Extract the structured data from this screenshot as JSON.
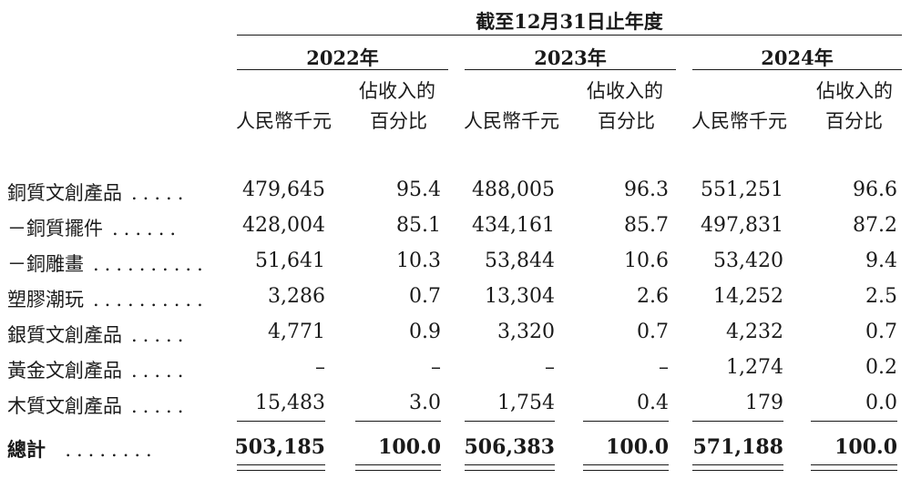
{
  "header": {
    "period_title": "截至12月31日止年度",
    "years": [
      "2022年",
      "2023年",
      "2024年"
    ],
    "col_amount": "人民幣千元",
    "col_pct_line1": "佔收入的",
    "col_pct_line2": "百分比"
  },
  "rows": [
    {
      "label": "銅質文創產品",
      "dots": ".....",
      "v2022": "479,645",
      "p2022": "95.4",
      "v2023": "488,005",
      "p2023": "96.3",
      "v2024": "551,251",
      "p2024": "96.6"
    },
    {
      "label": "－銅質擺件",
      "dots": "......",
      "v2022": "428,004",
      "p2022": "85.1",
      "v2023": "434,161",
      "p2023": "85.7",
      "v2024": "497,831",
      "p2024": "87.2"
    },
    {
      "label": "－銅雕畫",
      "dots": "..........",
      "v2022": "51,641",
      "p2022": "10.3",
      "v2023": "53,844",
      "p2023": "10.6",
      "v2024": "53,420",
      "p2024": "9.4"
    },
    {
      "label": "塑膠潮玩",
      "dots": "..........",
      "v2022": "3,286",
      "p2022": "0.7",
      "v2023": "13,304",
      "p2023": "2.6",
      "v2024": "14,252",
      "p2024": "2.5"
    },
    {
      "label": "銀質文創產品",
      "dots": ".....",
      "v2022": "4,771",
      "p2022": "0.9",
      "v2023": "3,320",
      "p2023": "0.7",
      "v2024": "4,232",
      "p2024": "0.7"
    },
    {
      "label": "黃金文創產品",
      "dots": ".....",
      "v2022": "–",
      "p2022": "–",
      "v2023": "–",
      "p2023": "–",
      "v2024": "1,274",
      "p2024": "0.2"
    },
    {
      "label": "木質文創產品",
      "dots": ".....",
      "v2022": "15,483",
      "p2022": "3.0",
      "v2023": "1,754",
      "p2023": "0.4",
      "v2024": "179",
      "p2024": "0.0"
    }
  ],
  "total": {
    "label": "總計",
    "dots": "........",
    "v2022": "503,185",
    "p2022": "100.0",
    "v2023": "506,383",
    "p2023": "100.0",
    "v2024": "571,188",
    "p2024": "100.0"
  }
}
